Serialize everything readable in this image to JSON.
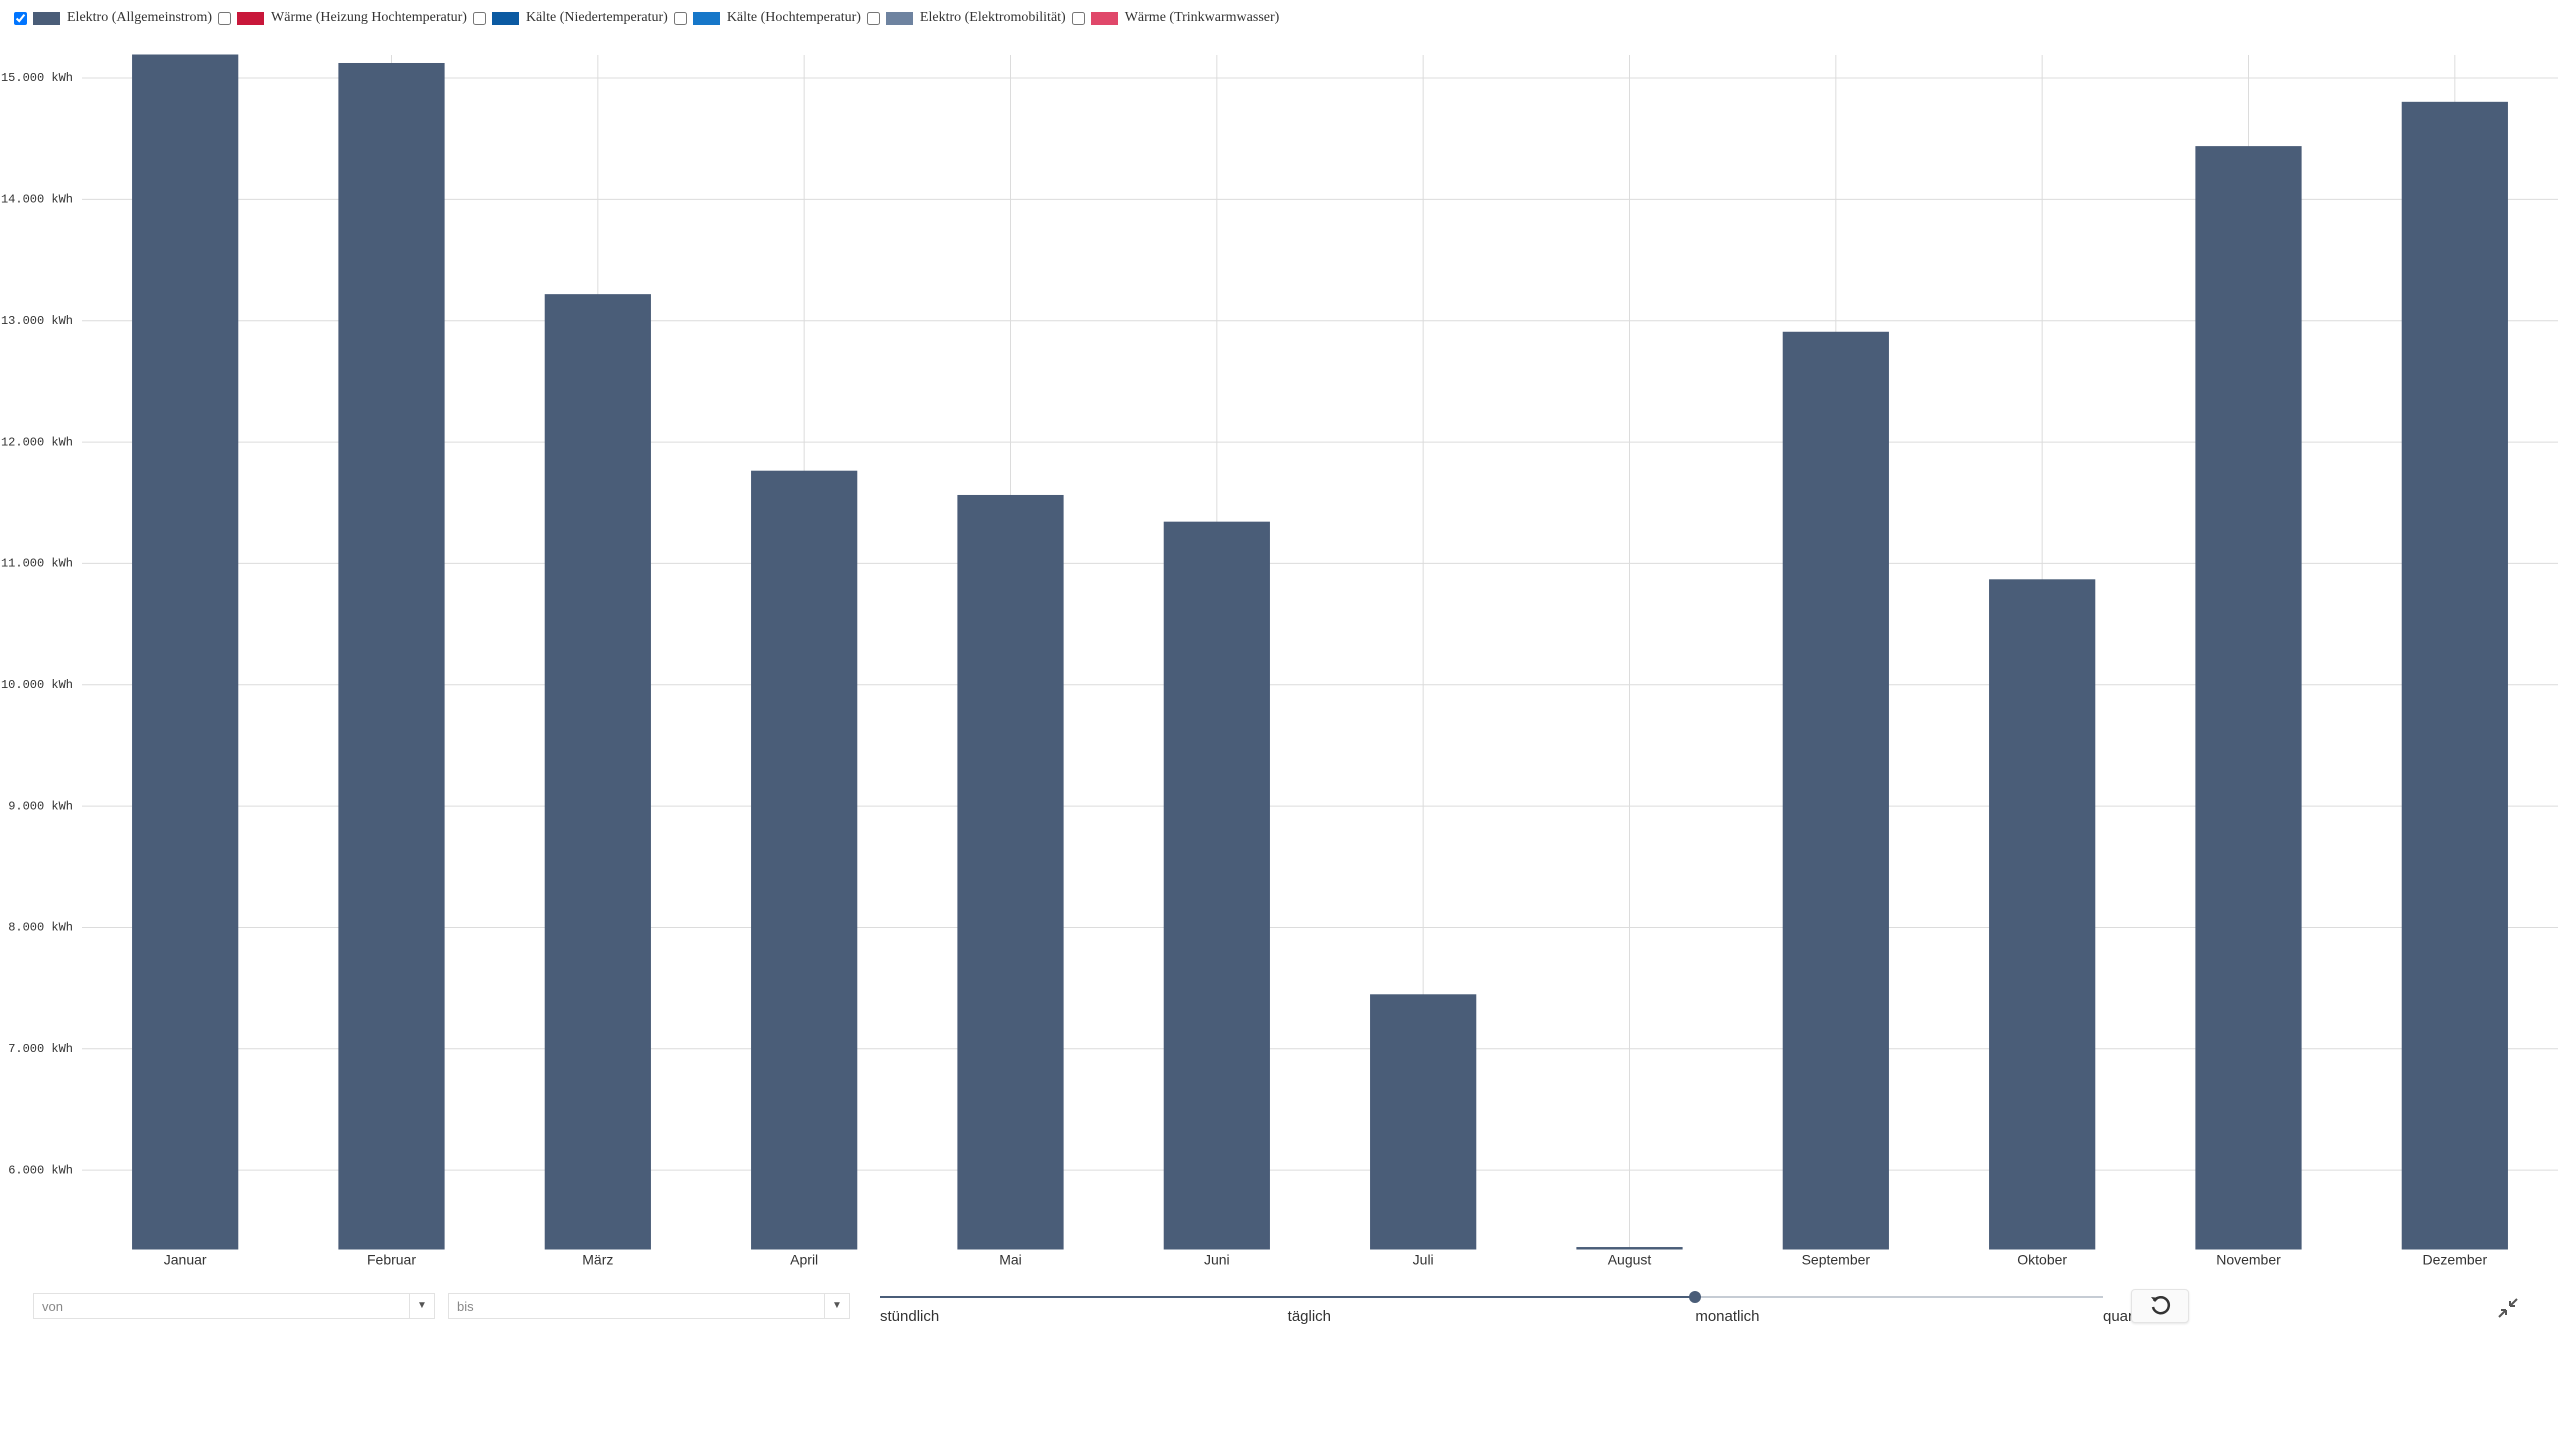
{
  "chart_data": {
    "type": "bar",
    "categories": [
      "Januar",
      "Februar",
      "März",
      "April",
      "Mai",
      "Juni",
      "Juli",
      "August",
      "September",
      "Oktober",
      "November",
      "Dezember"
    ],
    "series": [
      {
        "name": "Elektro (Allgemeinstrom)",
        "color": "#4a5d78",
        "visible": true,
        "values": [
          15190,
          15120,
          13215,
          11760,
          11560,
          11340,
          7445,
          5362,
          12905,
          10865,
          14435,
          14800
        ]
      },
      {
        "name": "Wärme (Heizung Hochtemperatur)",
        "color": "#c8173a",
        "visible": false
      },
      {
        "name": "Kälte (Niedertemperatur)",
        "color": "#0b5aa2",
        "visible": false
      },
      {
        "name": "Kälte (Hochtemperatur)",
        "color": "#1677c9",
        "visible": false
      },
      {
        "name": "Elektro (Elektromobilität)",
        "color": "#6e83a0",
        "visible": false
      },
      {
        "name": "Wärme (Trinkwarmwasser)",
        "color": "#e0486a",
        "visible": false
      }
    ],
    "ylim": [
      5350,
      15190
    ],
    "yticks": [
      {
        "value": 6000,
        "label": "6.000 kWh"
      },
      {
        "value": 7000,
        "label": "7.000 kWh"
      },
      {
        "value": 8000,
        "label": "8.000 kWh"
      },
      {
        "value": 9000,
        "label": "9.000 kWh"
      },
      {
        "value": 10000,
        "label": "10.000 kWh"
      },
      {
        "value": 11000,
        "label": "11.000 kWh"
      },
      {
        "value": 12000,
        "label": "12.000 kWh"
      },
      {
        "value": 13000,
        "label": "13.000 kWh"
      },
      {
        "value": 14000,
        "label": "14.000 kWh"
      },
      {
        "value": 15000,
        "label": "15.000 kWh"
      }
    ],
    "grid": true
  },
  "controls": {
    "from": "von",
    "to": "bis",
    "resolution_options": [
      "stündlich",
      "täglich",
      "monatlich",
      "quar"
    ],
    "resolution_selected": 2
  }
}
